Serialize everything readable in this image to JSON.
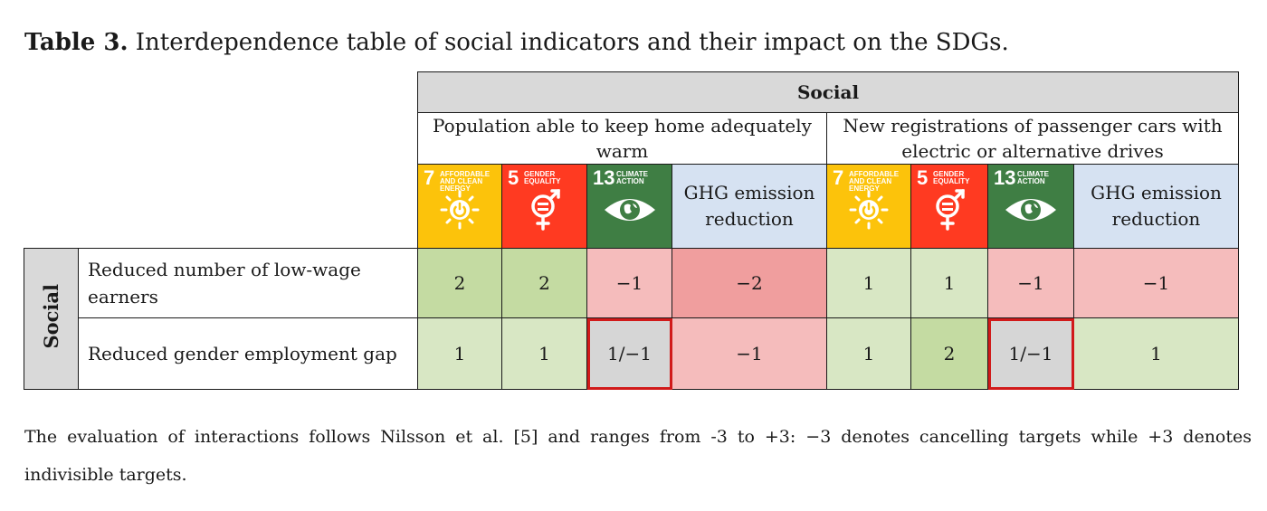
{
  "caption": {
    "label": "Table 3.",
    "text": " Interdependence table of social indicators and their impact on the SDGs."
  },
  "header": {
    "top": "Social",
    "groups": [
      "Population able to keep home adequately warm",
      "New registrations of passenger cars with electric or alternative drives"
    ],
    "columns": [
      {
        "type": "sdg",
        "number": "7",
        "label": "AFFORDABLE AND CLEAN ENERGY",
        "icon": "sun-power-icon",
        "color": "#fcc30b"
      },
      {
        "type": "sdg",
        "number": "5",
        "label": "GENDER EQUALITY",
        "icon": "gender-equality-icon",
        "color": "#ff3a21"
      },
      {
        "type": "sdg",
        "number": "13",
        "label": "CLIMATE ACTION",
        "icon": "eye-globe-icon",
        "color": "#3f7e44"
      },
      {
        "type": "text",
        "label": "GHG emission reduction"
      }
    ]
  },
  "row_group": "Social",
  "rows": [
    {
      "label": "Reduced number of low-wage earners",
      "values": [
        "2",
        "2",
        "−1",
        "−2",
        "1",
        "1",
        "−1",
        "−1"
      ]
    },
    {
      "label": "Reduced gender employment gap",
      "values": [
        "1",
        "1",
        "1/−1",
        "−1",
        "1",
        "2",
        "1/−1",
        "1"
      ]
    }
  ],
  "note": {
    "line1": "The evaluation of interactions follows Nilsson et al. [5] and ranges from -3 to +3: −3 denotes cancelling targets while +3 denotes",
    "line2": "indivisible targets."
  },
  "colors": {
    "positive_strong": "#c4dba2",
    "positive_light": "#d8e7c4",
    "negative_light": "#f5bcbc",
    "negative_strong": "#f09e9e",
    "ambiguous": "#d6d6d6",
    "highlight_border": "#d11a1a",
    "header_fill": "#d9d9d9",
    "ghg_fill": "#d6e2f2"
  }
}
